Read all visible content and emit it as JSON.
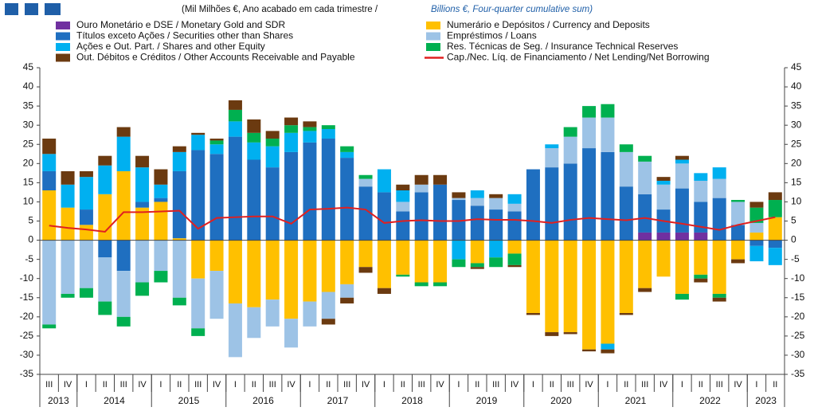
{
  "chart_data": {
    "type": "stacked_bar_line",
    "subtitle": "(Mil Milhões  €, Ano acabado em cada trimestre  / ",
    "subtitle_en": "Billions €, Four-quarter cumulative sum)",
    "categories": [
      "III",
      "IV",
      "I",
      "II",
      "III",
      "IV",
      "I",
      "II",
      "III",
      "IV",
      "I",
      "II",
      "III",
      "IV",
      "I",
      "II",
      "III",
      "IV",
      "I",
      "II",
      "III",
      "IV",
      "I",
      "II",
      "III",
      "IV",
      "I",
      "II",
      "III",
      "IV",
      "I",
      "II",
      "III",
      "IV",
      "I",
      "II",
      "III",
      "IV",
      "I",
      "II"
    ],
    "years": [
      "2013",
      "2014",
      "2015",
      "2016",
      "2017",
      "2018",
      "2019",
      "2020",
      "2021",
      "2022",
      "2023"
    ],
    "ylim": [
      -35,
      45
    ],
    "yticks": [
      -35,
      -30,
      -25,
      -20,
      -15,
      -10,
      -5,
      0,
      5,
      10,
      15,
      20,
      25,
      30,
      35,
      40,
      45
    ],
    "series": [
      {
        "name": "Ouro Monetário e DSE / Monetary Gold and SDR",
        "color": "#7030a0",
        "values": [
          0,
          0,
          0,
          0,
          0,
          0,
          0,
          0,
          0,
          0,
          0,
          0,
          0,
          0,
          0,
          0,
          0,
          0,
          0,
          0,
          0,
          0,
          0,
          0,
          0,
          0,
          0,
          0,
          0,
          0,
          0,
          0,
          2,
          2,
          2,
          2,
          0,
          0,
          0,
          0
        ]
      },
      {
        "name": "Numerário e Depósitos / Currency and Deposits",
        "color": "#ffc000",
        "values": [
          13,
          8.5,
          4,
          12,
          18,
          8.5,
          10,
          0.5,
          -10,
          -8,
          -16.5,
          -17.5,
          -15.5,
          -20.5,
          -16,
          -13.5,
          -11.5,
          -7,
          -12.5,
          -9,
          -11,
          -11,
          0,
          -6,
          0,
          -3.5,
          -19,
          -24,
          -24,
          -28.5,
          -27,
          -19,
          -12.5,
          -9.5,
          -14,
          -9,
          -14,
          -5,
          2,
          6
        ]
      },
      {
        "name": "Títulos exceto Ações / Securities other than Shares",
        "color": "#1f6fc0",
        "values": [
          5,
          0,
          4,
          -4.5,
          -8,
          1.5,
          1,
          17.5,
          23.5,
          22.5,
          27,
          21,
          19,
          23,
          25.5,
          26.5,
          21.5,
          14,
          12.5,
          7.5,
          12.5,
          14.5,
          10.5,
          9,
          8,
          7.5,
          18.5,
          19,
          20,
          24,
          23,
          14,
          10,
          6,
          11.5,
          8,
          11,
          4,
          -1.5,
          -2
        ]
      },
      {
        "name": "Empréstimos / Loans",
        "color": "#9dc3e6",
        "values": [
          -22,
          -14,
          -12.5,
          -11.5,
          -12,
          -11,
          -8,
          -15,
          -13,
          -12.5,
          -14,
          -8,
          -7,
          -7.5,
          -6.5,
          -7,
          -3.5,
          2,
          0,
          2.5,
          2,
          0,
          0.5,
          2,
          3,
          2,
          0,
          5,
          7,
          8,
          9,
          9,
          8.5,
          6.5,
          6.5,
          5.5,
          5,
          6,
          2.5,
          0
        ]
      },
      {
        "name": "Ações e Out. Part. / Shares and other Equity",
        "color": "#00b0f0",
        "values": [
          4.5,
          6,
          8.5,
          7.5,
          9,
          9,
          3.5,
          5,
          4,
          2.5,
          4,
          4.5,
          5.5,
          5,
          3,
          2.5,
          1.5,
          0,
          6,
          3,
          0,
          0,
          -5,
          2,
          -4.5,
          2.5,
          0,
          1,
          0,
          0,
          -1.5,
          0,
          0,
          1,
          1,
          2,
          3,
          0,
          -4,
          -4.5
        ]
      },
      {
        "name": "Res. Técnicas de Seg. / Insurance Technical Reserves",
        "color": "#00b050",
        "values": [
          -1,
          -1,
          -2.5,
          -3.5,
          -2.5,
          -3.5,
          -3,
          -2,
          -2,
          1,
          3,
          2.5,
          2,
          2,
          1,
          1,
          1.5,
          1,
          0,
          -0.5,
          -1,
          -1,
          -2,
          -1,
          -2.5,
          -3,
          0,
          0,
          2.5,
          3,
          3.5,
          2,
          1.5,
          0,
          -1.5,
          -1,
          -1,
          0.5,
          4,
          4.5
        ]
      },
      {
        "name": "Out. Débitos e Créditos / Other Accounts Receivable and Payable",
        "color": "#6b3a10",
        "values": [
          4,
          3.5,
          1.5,
          2.5,
          2.5,
          3,
          4,
          1.5,
          0.5,
          0.5,
          2.5,
          3.5,
          2,
          2,
          1.5,
          -1.5,
          -1.5,
          -1.5,
          -1.5,
          1.5,
          2.5,
          2.5,
          1.5,
          -0.5,
          1,
          -0.5,
          -0.5,
          -1,
          -0.5,
          -0.5,
          -1,
          -0.5,
          -1,
          1,
          1,
          -1,
          -1,
          -1,
          1.5,
          2
        ]
      },
      {
        "name": "Cap./Nec. Líq. de Financiamento / Net Lending/Net Borrowing",
        "color": "#e02020",
        "kind": "line",
        "values": [
          3.8,
          3.2,
          2.8,
          2.2,
          7.3,
          7.3,
          7.5,
          7.7,
          3,
          5.8,
          6,
          6.2,
          6.2,
          4.3,
          8,
          8.2,
          8.5,
          8,
          4.5,
          5,
          5.2,
          5,
          5,
          5.5,
          5.3,
          5.3,
          5,
          4.5,
          5.3,
          5.8,
          5.5,
          5.2,
          5.8,
          5,
          4.3,
          3.5,
          2.7,
          4,
          5,
          6
        ]
      }
    ]
  }
}
